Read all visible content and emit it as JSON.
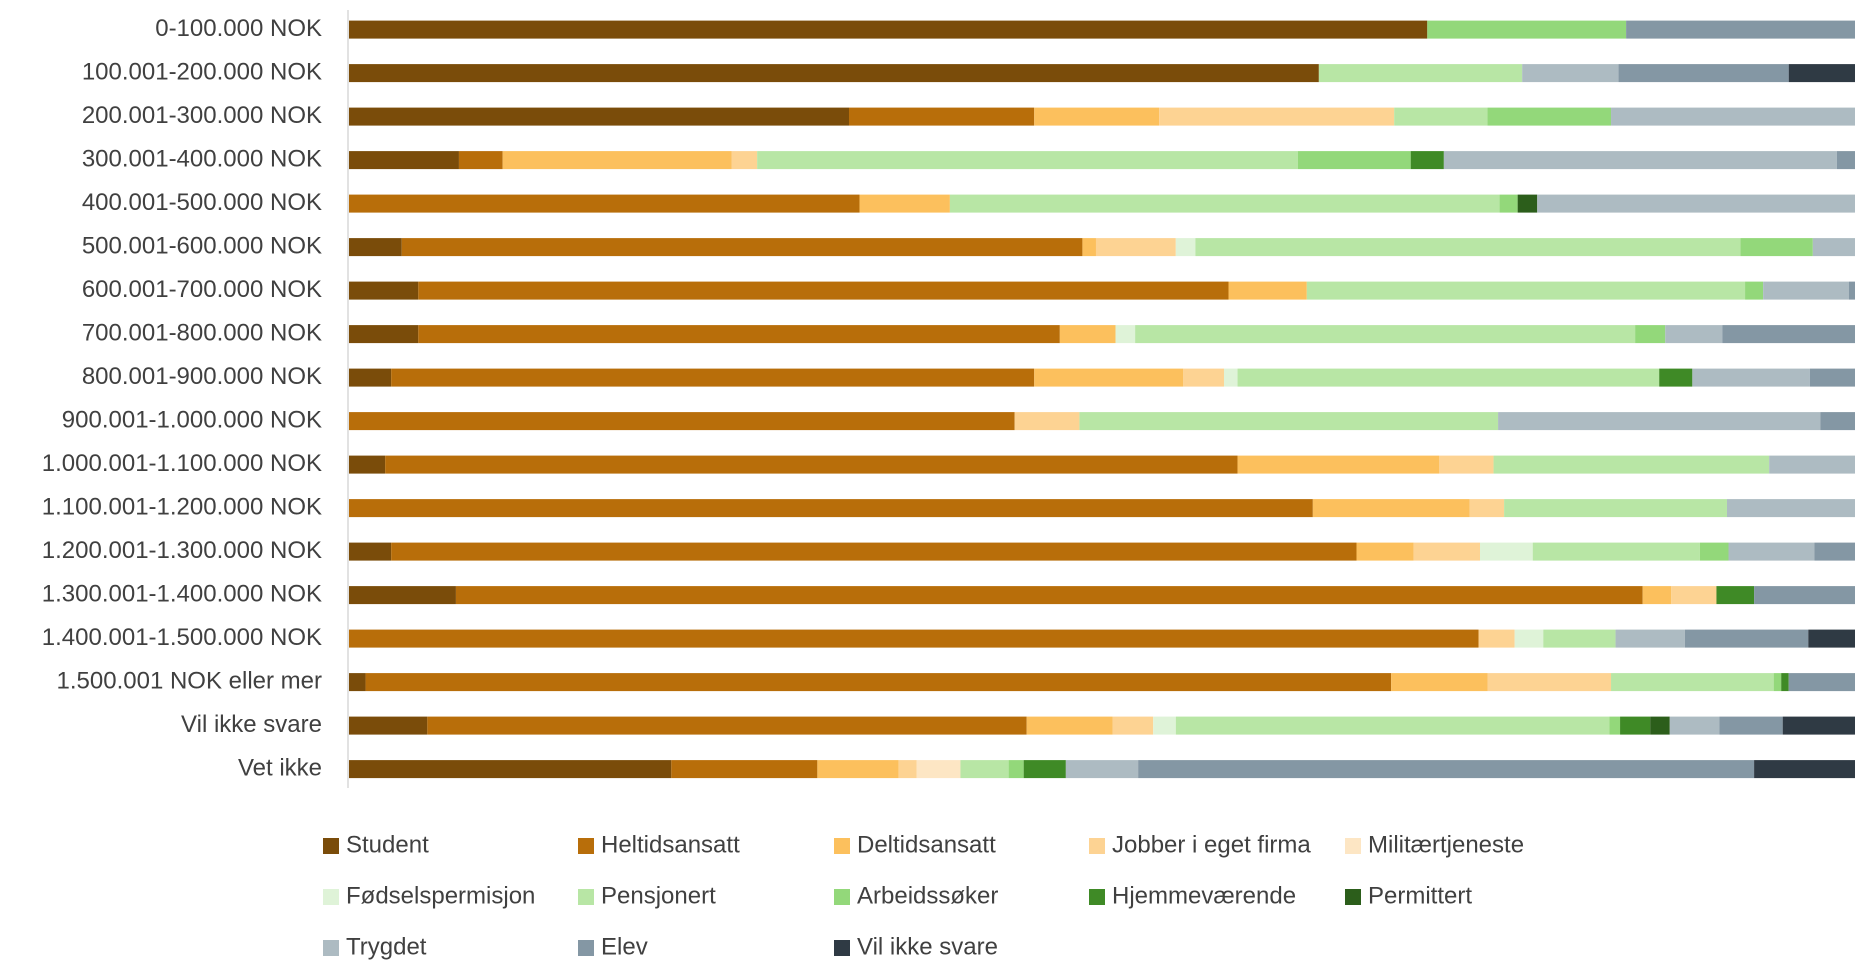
{
  "chart_data": {
    "type": "stacked-barh",
    "categories": [
      "0-100.000 NOK",
      "100.001-200.000 NOK",
      "200.001-300.000 NOK",
      "300.001-400.000 NOK",
      "400.001-500.000 NOK",
      "500.001-600.000 NOK",
      "600.001-700.000 NOK",
      "700.001-800.000 NOK",
      "800.001-900.000 NOK",
      "900.001-1.000.000 NOK",
      "1.000.001-1.100.000 NOK",
      "1.100.001-1.200.000 NOK",
      "1.200.001-1.300.000 NOK",
      "1.300.001-1.400.000 NOK",
      "1.400.001-1.500.000 NOK",
      "1.500.001 NOK eller mer",
      "Vil ikke svare",
      "Vet ikke"
    ],
    "xlim": [
      0,
      100
    ],
    "series": [
      {
        "name": "Student",
        "color": "#7a4c0a",
        "values": [
          71.6,
          64.4,
          33.2,
          7.3,
          0,
          3.5,
          4.6,
          4.6,
          2.8,
          0,
          2.4,
          0,
          2.8,
          7.1,
          0,
          1.1,
          5.2,
          21.4
        ]
      },
      {
        "name": "Heltidsansatt",
        "color": "#b86e0a",
        "values": [
          0,
          0,
          12.3,
          2.9,
          33.9,
          45.2,
          53.8,
          42.6,
          42.7,
          44.2,
          56.6,
          64.0,
          64.1,
          78.8,
          75.0,
          68.1,
          39.8,
          9.7
        ]
      },
      {
        "name": "Deltidsansatt",
        "color": "#fcc05d",
        "values": [
          0,
          0,
          8.3,
          15.2,
          6.0,
          0.9,
          5.2,
          3.7,
          9.9,
          0,
          13.4,
          10.4,
          3.8,
          1.9,
          0,
          6.4,
          5.7,
          5.4
        ]
      },
      {
        "name": "Jobber i eget firma",
        "color": "#fdd393",
        "values": [
          0,
          0,
          15.6,
          1.7,
          0,
          5.3,
          0,
          0,
          2.7,
          4.3,
          3.6,
          2.3,
          4.4,
          3.0,
          2.4,
          8.2,
          2.7,
          1.2
        ]
      },
      {
        "name": "Militærtjeneste",
        "color": "#fde6c4",
        "values": [
          0,
          0,
          0,
          0,
          0,
          0,
          0,
          0,
          0,
          0,
          0,
          0,
          0,
          0,
          0,
          0,
          0,
          2.9
        ]
      },
      {
        "name": "Fødselspermisjon",
        "color": "#dff3d8",
        "values": [
          0,
          0,
          0,
          0,
          0,
          1.3,
          0,
          1.3,
          0.9,
          0,
          0,
          0,
          3.5,
          0,
          1.9,
          0,
          1.5,
          0
        ]
      },
      {
        "name": "Pensjonert",
        "color": "#b8e6a5",
        "values": [
          0,
          13.5,
          6.2,
          35.9,
          36.5,
          36.2,
          29.1,
          33.2,
          28.0,
          27.8,
          18.3,
          14.8,
          11.1,
          0,
          4.8,
          10.8,
          28.8,
          3.2
        ]
      },
      {
        "name": "Arbeidssøker",
        "color": "#93d87a",
        "values": [
          13.2,
          0,
          8.2,
          7.5,
          1.2,
          4.8,
          1.2,
          2.0,
          0,
          0,
          0,
          0,
          1.9,
          0,
          0,
          0.5,
          0.7,
          1.0
        ]
      },
      {
        "name": "Hjemmeværende",
        "color": "#3f8a26",
        "values": [
          0,
          0,
          0,
          2.2,
          0,
          0,
          0,
          0,
          2.2,
          0,
          0,
          0,
          0,
          2.5,
          0,
          0.5,
          2.0,
          2.8
        ]
      },
      {
        "name": "Permittert",
        "color": "#2c5e1b",
        "values": [
          0,
          0,
          0,
          0,
          1.3,
          0,
          0,
          0,
          0,
          0,
          0,
          0,
          0,
          0,
          0,
          0,
          1.3,
          0
        ]
      },
      {
        "name": "Trygdet",
        "color": "#adbbc2",
        "values": [
          0,
          6.4,
          16.2,
          26.1,
          21.1,
          2.8,
          5.7,
          3.8,
          7.8,
          21.4,
          5.7,
          8.5,
          5.7,
          0,
          4.6,
          0,
          3.3,
          4.8
        ]
      },
      {
        "name": "Elev",
        "color": "#8497a4",
        "values": [
          15.2,
          11.3,
          0,
          1.2,
          0,
          0,
          0.4,
          8.8,
          3.0,
          2.3,
          0,
          0,
          2.7,
          6.7,
          8.2,
          4.4,
          4.2,
          40.9
        ]
      },
      {
        "name": "Vil ikke svare",
        "color": "#2f3a44",
        "values": [
          0,
          4.4,
          0,
          0,
          0,
          0,
          0,
          0,
          0,
          0,
          0,
          0,
          0,
          0,
          3.1,
          0,
          4.8,
          6.7
        ]
      }
    ]
  }
}
